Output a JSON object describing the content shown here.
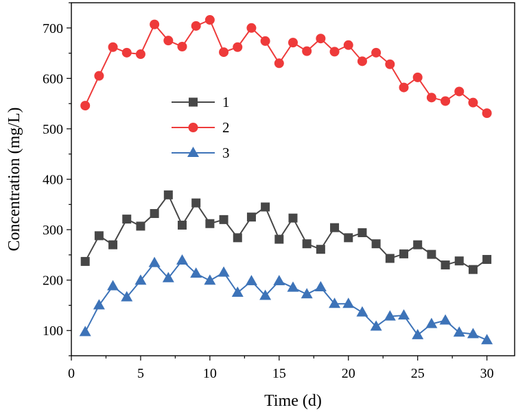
{
  "chart_data": {
    "type": "line",
    "title": "",
    "xlabel": "Time (d)",
    "ylabel": "Concentration (mg/L)",
    "xlim": [
      0,
      32
    ],
    "ylim": [
      50,
      750
    ],
    "xticks": [
      0,
      5,
      10,
      15,
      20,
      25,
      30
    ],
    "yticks": [
      100,
      200,
      300,
      400,
      500,
      600,
      700
    ],
    "grid": false,
    "legend_position": "center-left",
    "x": [
      1,
      2,
      3,
      4,
      5,
      6,
      7,
      8,
      9,
      10,
      11,
      12,
      13,
      14,
      15,
      16,
      17,
      18,
      19,
      20,
      21,
      22,
      23,
      24,
      25,
      26,
      27,
      28,
      29,
      30
    ],
    "series": [
      {
        "name": "1",
        "color": "#474747",
        "marker": "square",
        "values": [
          237,
          288,
          270,
          321,
          307,
          332,
          369,
          309,
          353,
          312,
          320,
          284,
          325,
          345,
          281,
          323,
          272,
          261,
          304,
          284,
          294,
          272,
          243,
          252,
          270,
          251,
          230,
          238,
          221,
          241
        ]
      },
      {
        "name": "2",
        "color": "#ee3a3a",
        "marker": "circle",
        "values": [
          546,
          605,
          662,
          651,
          648,
          707,
          675,
          663,
          704,
          716,
          652,
          662,
          700,
          674,
          630,
          671,
          654,
          679,
          653,
          666,
          634,
          651,
          628,
          582,
          602,
          562,
          555,
          574,
          552,
          531
        ]
      },
      {
        "name": "3",
        "color": "#3d73b8",
        "marker": "triangle",
        "values": [
          97,
          150,
          188,
          166,
          199,
          234,
          204,
          239,
          213,
          199,
          215,
          175,
          198,
          169,
          198,
          185,
          172,
          186,
          153,
          153,
          136,
          108,
          128,
          130,
          91,
          113,
          120,
          96,
          93,
          81
        ]
      }
    ]
  }
}
